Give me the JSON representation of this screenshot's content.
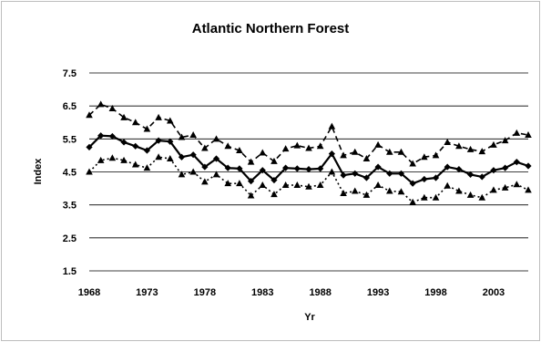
{
  "chart_data": {
    "type": "line",
    "title": "Atlantic Northern Forest",
    "xlabel": "Yr",
    "ylabel": "Index",
    "xlim": [
      1968,
      2006
    ],
    "ylim": [
      1.5,
      7.5
    ],
    "x_ticks": [
      "1968",
      "1973",
      "1978",
      "1983",
      "1988",
      "1993",
      "1998",
      "2003"
    ],
    "y_ticks": [
      "7.5",
      "6.5",
      "5.5",
      "4.5",
      "3.5",
      "2.5",
      "1.5"
    ],
    "grid": true,
    "legend": "none",
    "x": [
      1968,
      1969,
      1970,
      1971,
      1972,
      1973,
      1974,
      1975,
      1976,
      1977,
      1978,
      1979,
      1980,
      1981,
      1982,
      1983,
      1984,
      1985,
      1986,
      1987,
      1988,
      1989,
      1990,
      1991,
      1992,
      1993,
      1994,
      1995,
      1996,
      1997,
      1998,
      1999,
      2000,
      2001,
      2002,
      2003,
      2004,
      2005,
      2006
    ],
    "series": [
      {
        "style": "solid-diamond",
        "values": [
          5.25,
          5.6,
          5.58,
          5.4,
          5.28,
          5.15,
          5.45,
          5.42,
          4.95,
          5.02,
          4.65,
          4.9,
          4.62,
          4.6,
          4.22,
          4.55,
          4.25,
          4.62,
          4.6,
          4.58,
          4.6,
          5.05,
          4.4,
          4.45,
          4.32,
          4.65,
          4.45,
          4.45,
          4.15,
          4.28,
          4.32,
          4.65,
          4.58,
          4.42,
          4.35,
          4.55,
          4.62,
          4.8,
          4.68
        ]
      },
      {
        "style": "dashed-triangle",
        "values": [
          6.22,
          6.55,
          6.42,
          6.15,
          6.0,
          5.8,
          6.15,
          6.05,
          5.55,
          5.62,
          5.22,
          5.5,
          5.28,
          5.15,
          4.8,
          5.08,
          4.82,
          5.2,
          5.3,
          5.22,
          5.28,
          5.88,
          5.0,
          5.1,
          4.9,
          5.32,
          5.1,
          5.1,
          4.75,
          4.95,
          5.0,
          5.4,
          5.28,
          5.18,
          5.12,
          5.32,
          5.45,
          5.68,
          5.62
        ]
      },
      {
        "style": "dotted-triangle",
        "values": [
          4.5,
          4.85,
          4.92,
          4.85,
          4.72,
          4.62,
          4.95,
          4.9,
          4.42,
          4.5,
          4.2,
          4.42,
          4.15,
          4.15,
          3.78,
          4.1,
          3.82,
          4.1,
          4.1,
          4.05,
          4.1,
          4.5,
          3.85,
          3.92,
          3.8,
          4.1,
          3.92,
          3.9,
          3.58,
          3.72,
          3.72,
          4.08,
          3.92,
          3.8,
          3.72,
          3.95,
          4.02,
          4.12,
          3.95
        ]
      }
    ]
  }
}
